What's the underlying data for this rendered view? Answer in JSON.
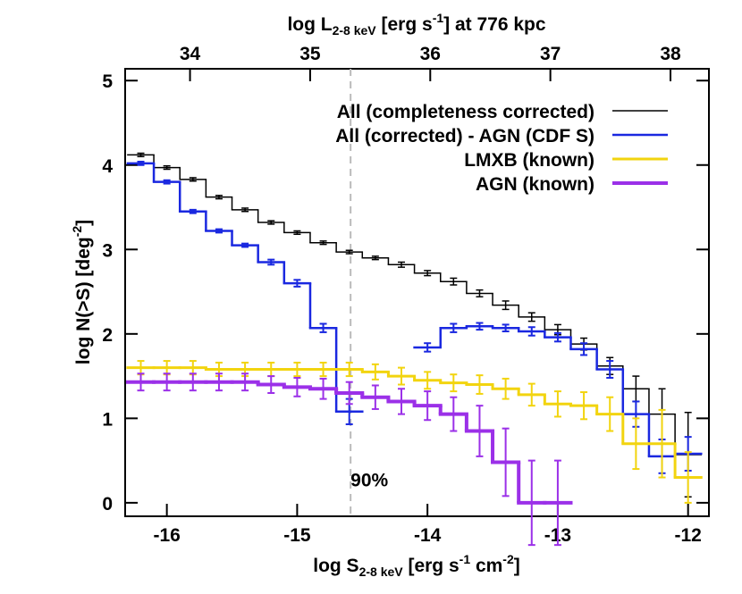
{
  "chart_data": {
    "type": "step",
    "xlabel": [
      "log S",
      "2-8 keV",
      " [erg s",
      "-1",
      " cm",
      "-2",
      "]"
    ],
    "ylabel": [
      "log N(>S) [deg",
      "-2",
      "]"
    ],
    "x2label": [
      "log L",
      "2-8 keV",
      " [erg s",
      "-1",
      "] at 776 kpc"
    ],
    "xlim": [
      -16.32,
      -11.84
    ],
    "ylim": [
      -0.16,
      5.14
    ],
    "x2lim": [
      33.46,
      38.32
    ],
    "xticks": [
      -16,
      -15,
      -14,
      -13,
      -12
    ],
    "yticks": [
      0,
      1,
      2,
      3,
      4,
      5
    ],
    "x2ticks": [
      34,
      35,
      36,
      37,
      38
    ],
    "bin_width": 0.2,
    "x": [
      -16.2,
      -16.0,
      -15.8,
      -15.6,
      -15.4,
      -15.2,
      -15.0,
      -14.8,
      -14.6,
      -14.4,
      -14.2,
      -14.0,
      -13.8,
      -13.6,
      -13.4,
      -13.2,
      -13.0,
      -12.8,
      -12.6,
      -12.4,
      -12.2,
      -12.0
    ],
    "series": [
      {
        "name": "All (completeness corrected)",
        "color": "#000000",
        "width": 1.5,
        "values": [
          4.12,
          3.97,
          3.83,
          3.62,
          3.47,
          3.32,
          3.2,
          3.08,
          2.97,
          2.9,
          2.82,
          2.72,
          2.62,
          2.48,
          2.34,
          2.2,
          2.05,
          1.88,
          1.62,
          1.35,
          1.05,
          0.57
        ],
        "errors": [
          0.02,
          0.02,
          0.02,
          0.02,
          0.02,
          0.02,
          0.02,
          0.02,
          0.02,
          0.02,
          0.03,
          0.03,
          0.04,
          0.04,
          0.05,
          0.05,
          0.06,
          0.07,
          0.1,
          0.15,
          0.3,
          0.5
        ]
      },
      {
        "name": "All (corrected) - AGN (CDF S)",
        "color": "#1a28e0",
        "width": 2.5,
        "values": [
          4.02,
          3.8,
          3.45,
          3.22,
          3.05,
          2.85,
          2.6,
          2.07,
          1.08,
          null,
          null,
          1.84,
          2.07,
          2.09,
          2.07,
          2.03,
          1.96,
          1.82,
          1.58,
          1.05,
          0.55,
          0.58
        ],
        "errors": [
          0.02,
          0.02,
          0.02,
          0.02,
          0.02,
          0.03,
          0.04,
          0.05,
          0.15,
          null,
          null,
          0.05,
          0.05,
          0.04,
          0.04,
          0.05,
          0.05,
          0.07,
          0.1,
          0.15,
          0.2,
          0.2
        ]
      },
      {
        "name": "LMXB (known)",
        "color": "#f2d40f",
        "width": 3,
        "values": [
          1.6,
          1.6,
          1.6,
          1.58,
          1.58,
          1.58,
          1.58,
          1.58,
          1.58,
          1.55,
          1.5,
          1.45,
          1.42,
          1.4,
          1.35,
          1.28,
          1.17,
          1.15,
          1.05,
          0.7,
          0.7,
          0.3
        ],
        "errors": [
          0.08,
          0.08,
          0.08,
          0.08,
          0.08,
          0.08,
          0.08,
          0.08,
          0.08,
          0.09,
          0.1,
          0.1,
          0.1,
          0.11,
          0.12,
          0.13,
          0.15,
          0.16,
          0.2,
          0.3,
          0.4,
          0.3
        ]
      },
      {
        "name": "AGN (known)",
        "color": "#9b30e8",
        "width": 4,
        "values": [
          1.43,
          1.43,
          1.43,
          1.43,
          1.43,
          1.4,
          1.37,
          1.35,
          1.3,
          1.25,
          1.2,
          1.15,
          1.05,
          0.85,
          0.48,
          0.0,
          0.0,
          null,
          null,
          null,
          null,
          null
        ],
        "errors": [
          0.1,
          0.1,
          0.1,
          0.1,
          0.1,
          0.1,
          0.11,
          0.12,
          0.13,
          0.14,
          0.15,
          0.17,
          0.2,
          0.3,
          0.4,
          0.5,
          0.5,
          null,
          null,
          null,
          null,
          null
        ]
      }
    ],
    "vline": -14.59,
    "vline_label": "90%",
    "vline_label_y": 0.28,
    "legend": "upper-right"
  }
}
